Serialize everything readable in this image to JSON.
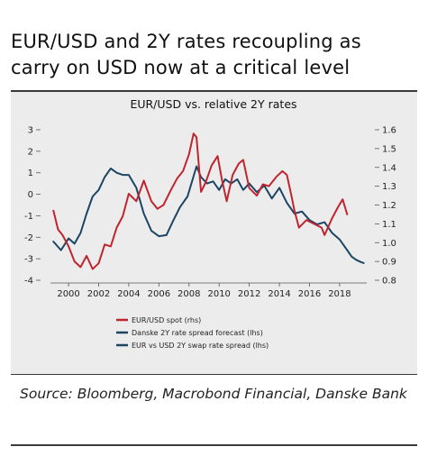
{
  "header": {
    "title": "EUR/USD and 2Y rates recoupling as carry on USD now at a critical level"
  },
  "footer": {
    "source": "Source: Bloomberg, Macrobond Financial, Danske Bank"
  },
  "colors": {
    "red": "#c0252f",
    "navy": "#1b4563",
    "panel": "#ececec"
  },
  "chart_data": {
    "type": "line",
    "title": "EUR/USD vs. relative 2Y rates",
    "x_ticks": [
      "2000",
      "2002",
      "2004",
      "2006",
      "2008",
      "2010",
      "2012",
      "2014",
      "2016",
      "2018"
    ],
    "xlim": [
      1998.8,
      2019.8
    ],
    "left_axis": {
      "ticks": [
        "3",
        "2",
        "1",
        "0",
        "-1",
        "-2",
        "-3",
        "-4"
      ],
      "ylim": [
        -4,
        3
      ]
    },
    "right_axis": {
      "ticks": [
        "1.6",
        "1.5",
        "1.4",
        "1.3",
        "1.2",
        "1.1",
        "1.0",
        "0.9",
        "0.8"
      ],
      "ylim": [
        0.8,
        1.6
      ]
    },
    "series": [
      {
        "name": "EUR/USD spot (rhs)",
        "axis": "right",
        "color": "#c0252f",
        "x": [
          1999.0,
          1999.3,
          1999.6,
          2000.0,
          2000.4,
          2000.8,
          2001.2,
          2001.6,
          2002.0,
          2002.4,
          2002.8,
          2003.2,
          2003.6,
          2004.0,
          2004.5,
          2005.0,
          2005.5,
          2005.9,
          2006.3,
          2006.8,
          2007.2,
          2007.6,
          2008.0,
          2008.3,
          2008.5,
          2008.8,
          2009.1,
          2009.5,
          2009.9,
          2010.2,
          2010.5,
          2010.9,
          2011.3,
          2011.6,
          2012.0,
          2012.5,
          2012.9,
          2013.3,
          2013.8,
          2014.2,
          2014.5,
          2014.8,
          2015.0,
          2015.3,
          2015.8,
          2016.3,
          2016.8,
          2017.0,
          2017.5,
          2017.9,
          2018.2,
          2018.5
        ],
        "y": [
          1.17,
          1.07,
          1.04,
          0.98,
          0.9,
          0.87,
          0.93,
          0.86,
          0.89,
          0.99,
          0.98,
          1.08,
          1.14,
          1.26,
          1.22,
          1.33,
          1.22,
          1.18,
          1.2,
          1.28,
          1.34,
          1.38,
          1.47,
          1.58,
          1.56,
          1.27,
          1.32,
          1.41,
          1.46,
          1.33,
          1.22,
          1.36,
          1.42,
          1.44,
          1.29,
          1.25,
          1.31,
          1.3,
          1.35,
          1.38,
          1.36,
          1.25,
          1.17,
          1.08,
          1.12,
          1.1,
          1.08,
          1.04,
          1.13,
          1.19,
          1.23,
          1.15
        ]
      },
      {
        "name": "Danske 2Y rate spread forecast (lhs)",
        "axis": "left",
        "color": "#1b4563",
        "x": [
          2018.5,
          2018.8,
          2019.1,
          2019.4,
          2019.6
        ],
        "y": [
          -2.6,
          -2.9,
          -3.05,
          -3.15,
          -3.2
        ]
      },
      {
        "name": "EUR vs USD 2Y swap rate spread (lhs)",
        "axis": "left",
        "color": "#1b4563",
        "x": [
          1999.0,
          1999.5,
          2000.0,
          2000.4,
          2000.8,
          2001.2,
          2001.6,
          2002.0,
          2002.4,
          2002.8,
          2003.2,
          2003.6,
          2004.0,
          2004.5,
          2005.0,
          2005.5,
          2006.0,
          2006.5,
          2006.9,
          2007.4,
          2007.9,
          2008.2,
          2008.5,
          2008.8,
          2009.2,
          2009.6,
          2010.0,
          2010.4,
          2010.8,
          2011.2,
          2011.6,
          2012.0,
          2012.5,
          2013.0,
          2013.5,
          2014.0,
          2014.5,
          2015.0,
          2015.5,
          2016.0,
          2016.5,
          2017.0,
          2017.5,
          2018.0,
          2018.5
        ],
        "y": [
          -2.2,
          -2.6,
          -2.05,
          -2.3,
          -1.8,
          -0.9,
          -0.1,
          0.2,
          0.8,
          1.2,
          1.0,
          0.9,
          0.9,
          0.3,
          -0.9,
          -1.7,
          -1.95,
          -1.9,
          -1.3,
          -0.6,
          -0.1,
          0.6,
          1.3,
          0.8,
          0.5,
          0.6,
          0.2,
          0.7,
          0.5,
          0.7,
          0.2,
          0.5,
          0.1,
          0.4,
          -0.2,
          0.3,
          -0.4,
          -0.9,
          -0.8,
          -1.2,
          -1.4,
          -1.3,
          -1.8,
          -2.1,
          -2.6
        ]
      }
    ],
    "legend": {
      "position": "bottom-left",
      "items": [
        "EUR/USD spot (rhs)",
        "Danske 2Y rate spread forecast (lhs)",
        "EUR vs USD 2Y swap rate spread (lhs)"
      ]
    },
    "grid": false
  }
}
